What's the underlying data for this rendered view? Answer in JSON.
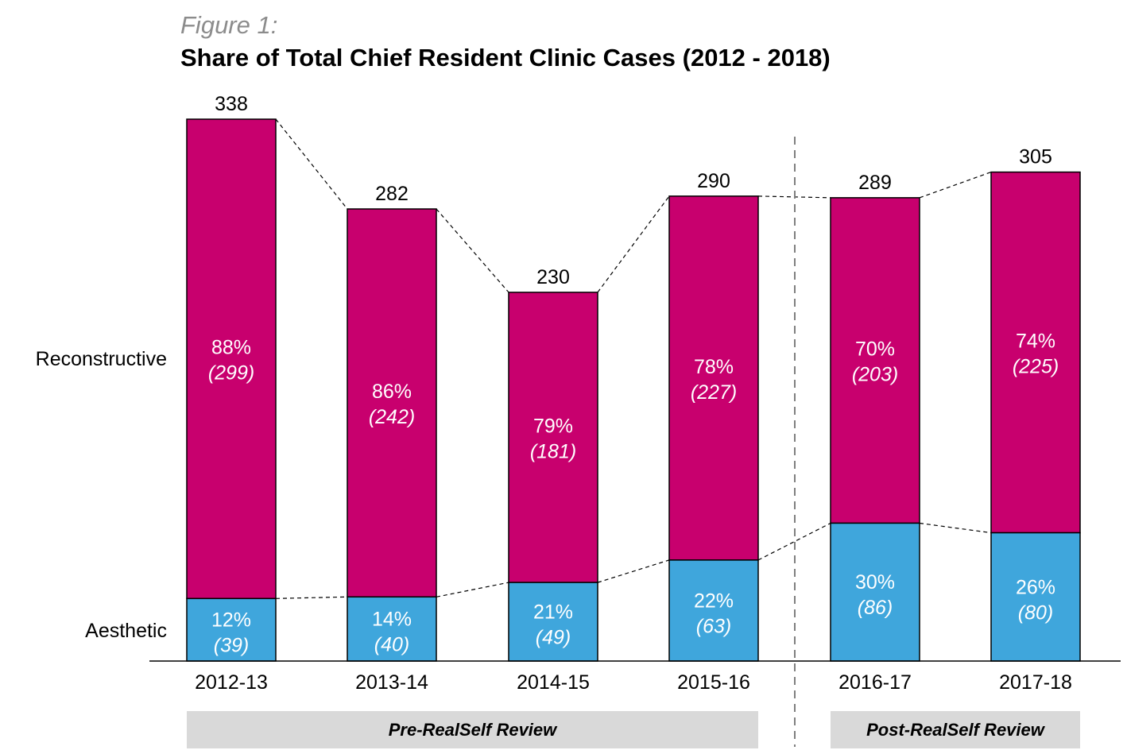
{
  "figure_label": "Figure 1:",
  "title": "Share of Total Chief Resident Clinic Cases (2012 - 2018)",
  "colors": {
    "reconstructive": "#c8006e",
    "aesthetic": "#3fa6dc",
    "band": "#d9d9d9"
  },
  "chart_data": {
    "type": "bar",
    "stacked": true,
    "title": "Share of Total Chief Resident Clinic Cases (2012 - 2018)",
    "categories": [
      "2012-13",
      "2013-14",
      "2014-15",
      "2015-16",
      "2016-17",
      "2017-18"
    ],
    "totals": [
      338,
      282,
      230,
      290,
      289,
      305
    ],
    "series": [
      {
        "name": "Aesthetic",
        "values": [
          39,
          40,
          49,
          63,
          86,
          80
        ],
        "percent_labels": [
          "12%",
          "14%",
          "21%",
          "22%",
          "30%",
          "26%"
        ],
        "count_labels": [
          "(39)",
          "(40)",
          "(49)",
          "(63)",
          "(86)",
          "(80)"
        ]
      },
      {
        "name": "Reconstructive",
        "values": [
          299,
          242,
          181,
          227,
          203,
          225
        ],
        "percent_labels": [
          "88%",
          "86%",
          "79%",
          "78%",
          "70%",
          "74%"
        ],
        "count_labels": [
          "(299)",
          "(242)",
          "(181)",
          "(227)",
          "(203)",
          "(225)"
        ]
      }
    ],
    "periods": [
      {
        "label": "Pre-RealSelf Review",
        "categories": [
          "2012-13",
          "2013-14",
          "2014-15",
          "2015-16"
        ]
      },
      {
        "label": "Post-RealSelf Review",
        "categories": [
          "2016-17",
          "2017-18"
        ]
      }
    ],
    "divider_between": [
      "2015-16",
      "2016-17"
    ],
    "ylim": [
      0,
      338
    ],
    "grid": false,
    "legend": "none"
  }
}
